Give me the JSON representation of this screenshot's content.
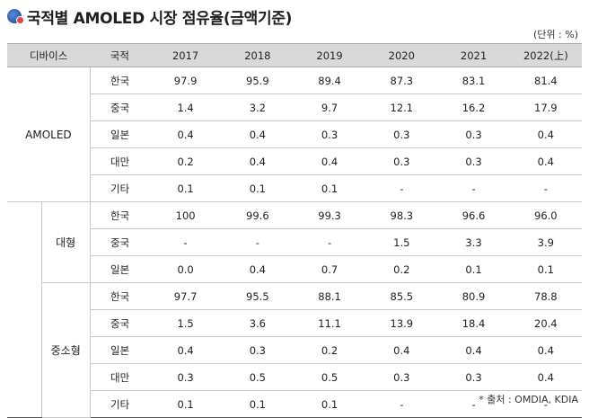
{
  "title": "국적별 AMOLED 시장 점유율(금액기준)",
  "unit": "(단위 : %)",
  "source": "* 출처 : OMDIA, KDIA",
  "headers": [
    "디바이스",
    "국적",
    "2017",
    "2018",
    "2019",
    "2020",
    "2021",
    "2022(上)"
  ],
  "groups": [
    {
      "name": "AMOLED",
      "rows": [
        {
          "country": "한국",
          "values": [
            "97.9",
            "95.9",
            "89.4",
            "87.3",
            "83.1",
            "81.4"
          ]
        },
        {
          "country": "중국",
          "values": [
            "1.4",
            "3.2",
            "9.7",
            "12.1",
            "16.2",
            "17.9"
          ]
        },
        {
          "country": "일본",
          "values": [
            "0.4",
            "0.4",
            "0.3",
            "0.3",
            "0.3",
            "0.4"
          ]
        },
        {
          "country": "대만",
          "values": [
            "0.2",
            "0.4",
            "0.4",
            "0.3",
            "0.3",
            "0.4"
          ]
        },
        {
          "country": "기타",
          "values": [
            "0.1",
            "0.1",
            "0.1",
            "-",
            "-",
            "-"
          ]
        }
      ]
    },
    {
      "name": "대형",
      "rows": [
        {
          "country": "한국",
          "values": [
            "100",
            "99.6",
            "99.3",
            "98.3",
            "96.6",
            "96.0"
          ]
        },
        {
          "country": "중국",
          "values": [
            "-",
            "-",
            "-",
            "1.5",
            "3.3",
            "3.9"
          ]
        },
        {
          "country": "일본",
          "values": [
            "0.0",
            "0.4",
            "0.7",
            "0.2",
            "0.1",
            "0.1"
          ]
        }
      ]
    },
    {
      "name": "중소형",
      "rows": [
        {
          "country": "한국",
          "values": [
            "97.7",
            "95.5",
            "88.1",
            "85.5",
            "80.9",
            "78.8"
          ]
        },
        {
          "country": "중국",
          "values": [
            "1.5",
            "3.6",
            "11.1",
            "13.9",
            "18.4",
            "20.4"
          ]
        },
        {
          "country": "일본",
          "values": [
            "0.4",
            "0.3",
            "0.2",
            "0.4",
            "0.4",
            "0.4"
          ]
        },
        {
          "country": "대만",
          "values": [
            "0.3",
            "0.5",
            "0.5",
            "0.3",
            "0.3",
            "0.4"
          ]
        },
        {
          "country": "기타",
          "values": [
            "0.1",
            "0.1",
            "0.1",
            "-",
            "-",
            "-"
          ]
        }
      ]
    }
  ]
}
